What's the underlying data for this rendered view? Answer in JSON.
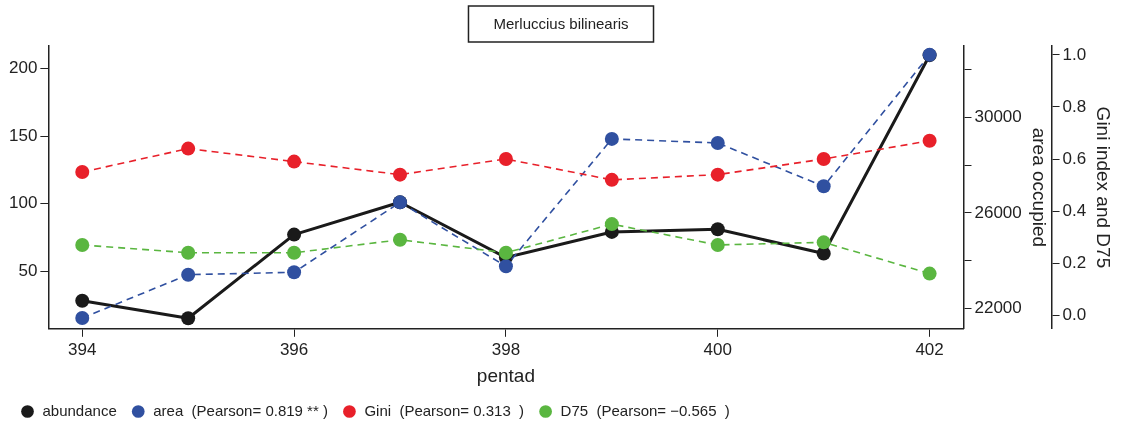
{
  "chart_data": {
    "type": "line",
    "title": "Merluccius bilinearis",
    "xlabel": "pentad",
    "y2label": "area occupied",
    "y3label": "Gini index and D75",
    "x": [
      394,
      395,
      396,
      397,
      398,
      399,
      400,
      401,
      402
    ],
    "xlim": [
      393.68,
      402.32
    ],
    "xticks": [
      394,
      396,
      398,
      400,
      402
    ],
    "ylim": [
      7.2,
      216.8
    ],
    "yticks": [
      50,
      100,
      150,
      200
    ],
    "y2lim": [
      21160,
      32970
    ],
    "y2ticks": [
      22000,
      {
        "value": 24000,
        "label": null
      },
      26000,
      {
        "value": 28000,
        "label": null
      },
      30000,
      {
        "value": 32000,
        "label": null
      }
    ],
    "y3lim": [
      -0.052,
      1.034
    ],
    "y3ticks": [
      {
        "value": 0,
        "label": "0.0"
      },
      {
        "value": 0.2,
        "label": "0.2"
      },
      {
        "value": 0.4,
        "label": "0.4"
      },
      {
        "value": 0.6,
        "label": "0.6"
      },
      {
        "value": 0.8,
        "label": "0.8"
      },
      {
        "value": 1,
        "label": "1.0"
      }
    ],
    "grid": false,
    "legend": "bottom left",
    "marker": "circle",
    "series": [
      {
        "name": "abundance",
        "color": "#1a1a1a",
        "line_style": "solid",
        "values": [
          28,
          15,
          77,
          101,
          60,
          79,
          81,
          63,
          210
        ]
      },
      {
        "name": "area  (Pearson= 0.819 ** )",
        "color": "#3050a0",
        "line_style": "dashed",
        "axis": "y2",
        "values": [
          21610,
          23420,
          23520,
          26440,
          23770,
          29090,
          28920,
          27110,
          32600
        ]
      },
      {
        "name": "Gini  (Pearson= 0.313  )",
        "color": "#e8202a",
        "line_style": "dashed",
        "axis": "y3",
        "values": [
          0.55,
          0.64,
          0.59,
          0.54,
          0.6,
          0.52,
          0.54,
          0.6,
          0.67
        ]
      },
      {
        "name": "D75  (Pearson= −0.565  )",
        "color": "#5ab640",
        "line_style": "dashed",
        "axis": "y3",
        "values": [
          0.27,
          0.24,
          0.24,
          0.29,
          0.24,
          0.35,
          0.27,
          0.28,
          0.16
        ]
      }
    ]
  }
}
